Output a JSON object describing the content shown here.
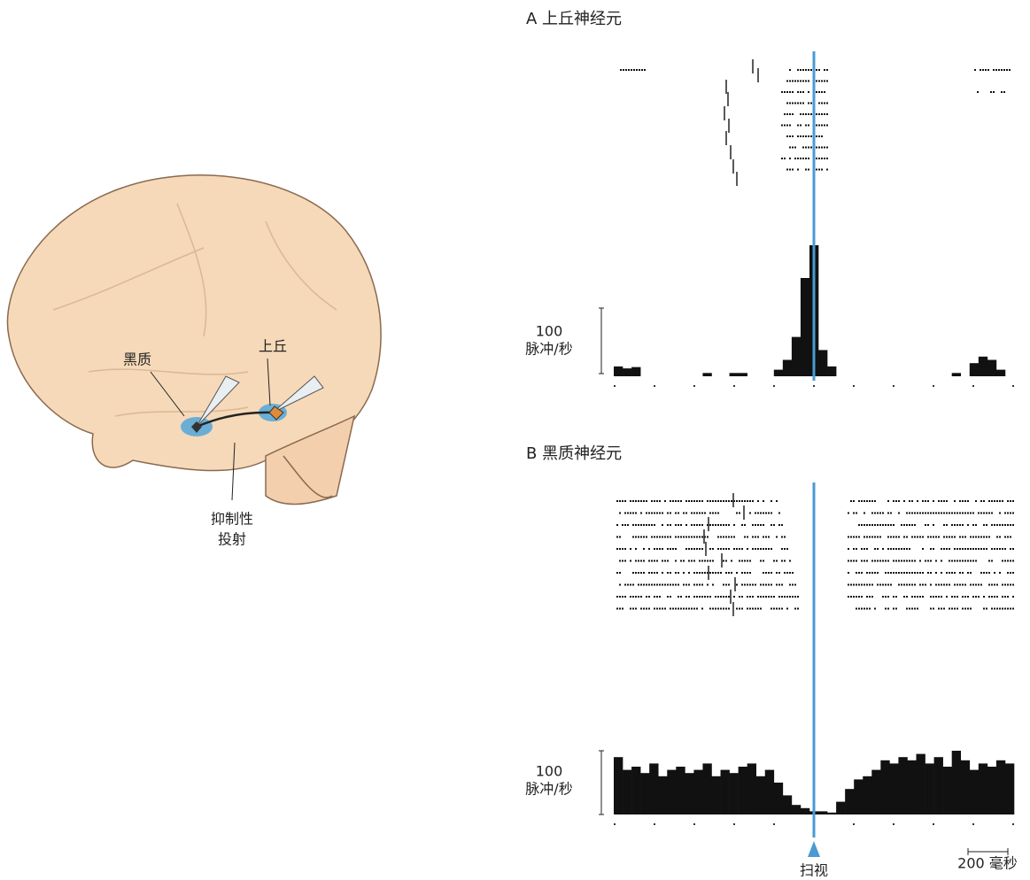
{
  "brain": {
    "substantia_nigra": "黑质",
    "superior_colliculus": "上丘",
    "projection": [
      "抑制性",
      "投射"
    ]
  },
  "panel_a": {
    "title": "A 上丘神经元",
    "scale_value": "100",
    "scale_unit": "脉冲/秒",
    "histogram": [
      15,
      12,
      14,
      0,
      0,
      0,
      0,
      0,
      0,
      0,
      5,
      0,
      0,
      5,
      5,
      0,
      0,
      0,
      10,
      25,
      60,
      150,
      200,
      40,
      15,
      0,
      0,
      0,
      0,
      0,
      0,
      0,
      0,
      0,
      0,
      0,
      0,
      0,
      5,
      0,
      20,
      30,
      25,
      10,
      0
    ]
  },
  "panel_b": {
    "title": "B 黑质神经元",
    "scale_value": "100",
    "scale_unit": "脉冲/秒",
    "histogram": [
      90,
      70,
      75,
      65,
      80,
      60,
      70,
      75,
      65,
      70,
      80,
      60,
      70,
      65,
      75,
      80,
      60,
      70,
      50,
      30,
      15,
      10,
      5,
      5,
      3,
      20,
      40,
      55,
      60,
      70,
      85,
      80,
      90,
      85,
      95,
      80,
      90,
      75,
      100,
      85,
      70,
      80,
      75,
      85,
      80
    ]
  },
  "saccade_label": "扫视",
  "time_scale": "200 毫秒"
}
